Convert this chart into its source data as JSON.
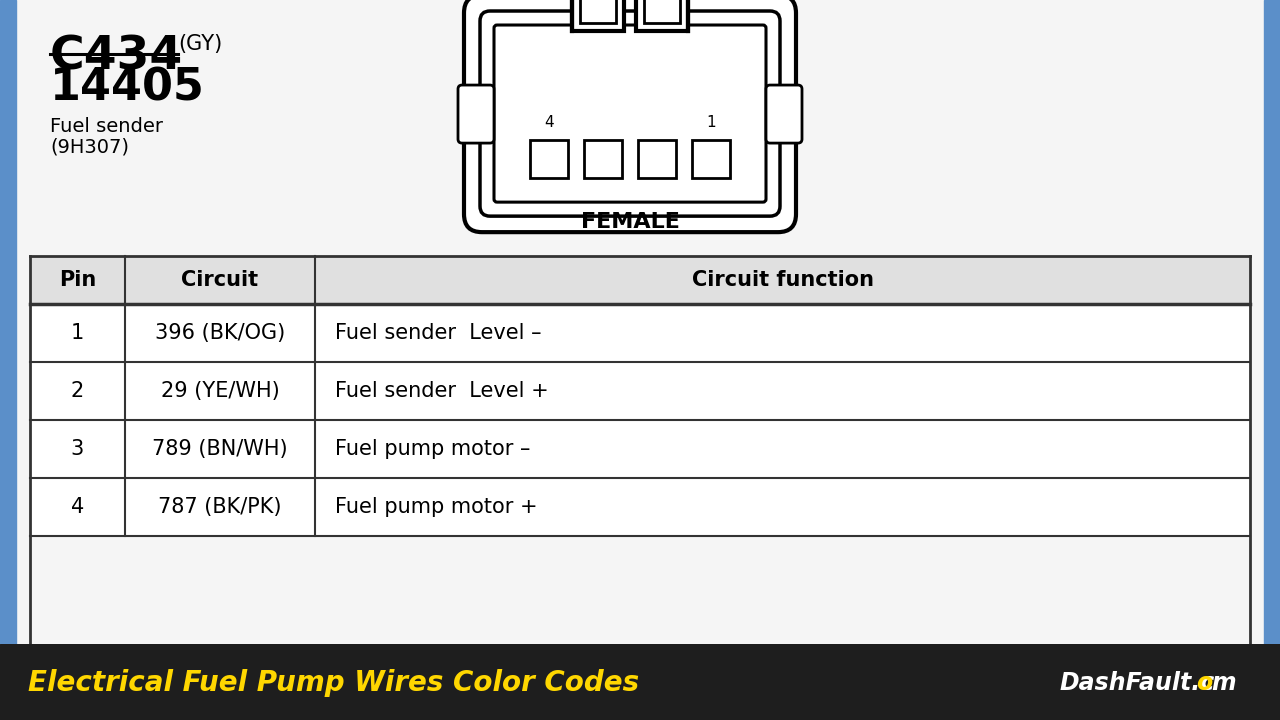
{
  "title": "C434",
  "title_suffix": "(GY)",
  "subtitle": "14405",
  "description_line1": "Fuel sender",
  "description_line2": "(9H307)",
  "connector_label": "FEMALE",
  "table_headers": [
    "Pin",
    "Circuit",
    "Circuit function"
  ],
  "table_rows": [
    [
      "1",
      "396 (BK/OG)",
      "Fuel sender  Level –"
    ],
    [
      "2",
      "29 (YE/WH)",
      "Fuel sender  Level +"
    ],
    [
      "3",
      "789 (BN/WH)",
      "Fuel pump motor –"
    ],
    [
      "4",
      "787 (BK/PK)",
      "Fuel pump motor +"
    ]
  ],
  "footer_text": "Electrical Fuel Pump Wires Color Codes",
  "footer_bg": "#1e1e1e",
  "footer_text_color": "#FFD700",
  "main_bg": "#f5f5f5",
  "border_color": "#5b8fc9",
  "table_border": "#333333",
  "header_bg": "#e0e0e0"
}
